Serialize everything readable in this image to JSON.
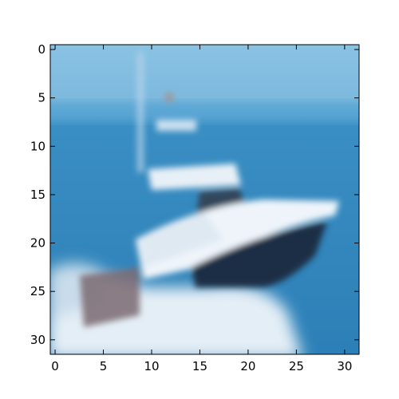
{
  "image": {
    "subject": "white motor boat with dark hull cruising on blue water",
    "colors": {
      "sky": "#86bfe0",
      "water": "#2f87be",
      "hull_dark": "#1c2e44",
      "hull_white": "#eef4fa",
      "spray": "#dbe8f3"
    }
  },
  "axes": {
    "x_ticks": [
      "0",
      "5",
      "10",
      "15",
      "20",
      "25",
      "30"
    ],
    "y_ticks": [
      "0",
      "5",
      "10",
      "15",
      "20",
      "25",
      "30"
    ],
    "x_tick_values": [
      0,
      5,
      10,
      15,
      20,
      25,
      30
    ],
    "y_tick_values": [
      0,
      5,
      10,
      15,
      20,
      25,
      30
    ],
    "xlim": [
      -0.5,
      31.5
    ],
    "ylim": [
      31.5,
      -0.5
    ]
  }
}
